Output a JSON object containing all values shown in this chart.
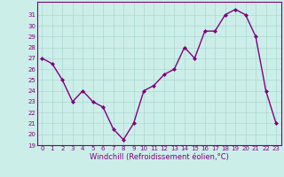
{
  "hours": [
    0,
    1,
    2,
    3,
    4,
    5,
    6,
    7,
    8,
    9,
    10,
    11,
    12,
    13,
    14,
    15,
    16,
    17,
    18,
    19,
    20,
    21,
    22,
    23
  ],
  "values": [
    27,
    26.5,
    25,
    23,
    24,
    23,
    22.5,
    20.5,
    19.5,
    21,
    24,
    24.5,
    25.5,
    26,
    28,
    27,
    29.5,
    29.5,
    31,
    31.5,
    31,
    29,
    24,
    21
  ],
  "line_color": "#800080",
  "marker": "D",
  "marker_size": 2.0,
  "bg_color": "#cceee8",
  "grid_color": "#aad8d0",
  "xlabel": "Windchill (Refroidissement éolien,°C)",
  "xlabel_color": "#800080",
  "tick_color": "#800080",
  "spine_color": "#800080",
  "ylim": [
    19,
    32
  ],
  "xlim": [
    -0.5,
    23.5
  ],
  "yticks": [
    19,
    20,
    21,
    22,
    23,
    24,
    25,
    26,
    27,
    28,
    29,
    30,
    31
  ],
  "xticks": [
    0,
    1,
    2,
    3,
    4,
    5,
    6,
    7,
    8,
    9,
    10,
    11,
    12,
    13,
    14,
    15,
    16,
    17,
    18,
    19,
    20,
    21,
    22,
    23
  ],
  "linewidth": 1.0,
  "tick_fontsize": 5.0,
  "xlabel_fontsize": 6.0
}
